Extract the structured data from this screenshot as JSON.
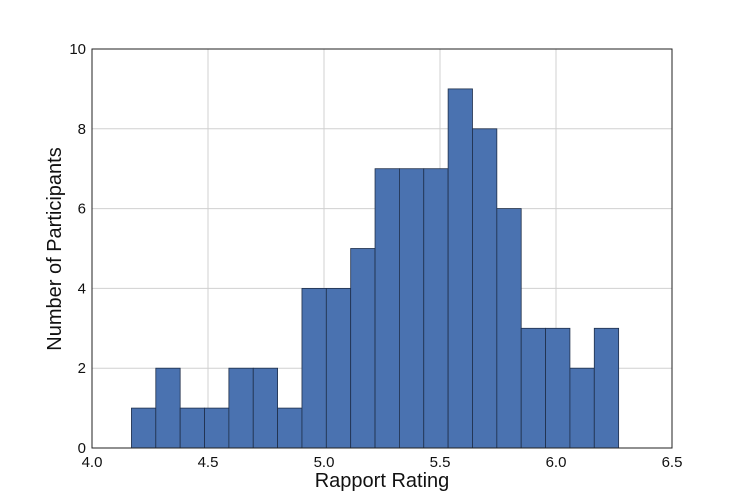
{
  "chart_data": {
    "type": "bar",
    "subtype": "histogram",
    "title": "",
    "xlabel": "Rapport Rating",
    "ylabel": "Number of Participants",
    "xlim": [
      4.0,
      6.5
    ],
    "ylim": [
      0,
      10
    ],
    "xticks": [
      "4.0",
      "4.5",
      "5.0",
      "5.5",
      "6.0",
      "6.5"
    ],
    "yticks": [
      "0",
      "2",
      "4",
      "6",
      "8",
      "10"
    ],
    "grid": true,
    "bar_color": "#4a72b0",
    "bin_start": 4.17,
    "bin_width": 0.105,
    "values": [
      1,
      2,
      1,
      1,
      2,
      2,
      1,
      4,
      4,
      5,
      7,
      7,
      7,
      9,
      8,
      6,
      3,
      3,
      2,
      3
    ]
  }
}
